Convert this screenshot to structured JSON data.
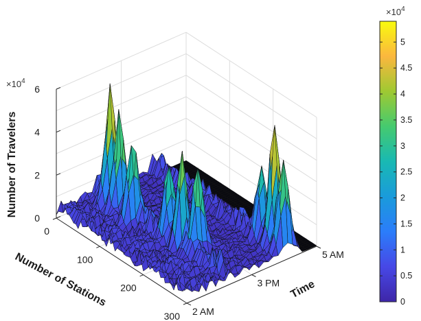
{
  "chart_data": {
    "type": "surface",
    "title": "",
    "xlabel": "Number of Stations",
    "ylabel": "Time",
    "zlabel": "Number of Travelers",
    "x_ticks": [
      "0",
      "100",
      "200",
      "300"
    ],
    "y_ticks": [
      "2 AM",
      "3 PM",
      "5 AM"
    ],
    "z_ticks": [
      "0",
      "2",
      "4",
      "6"
    ],
    "z_exponent": "10",
    "z_exponent_power": "4",
    "xlim": [
      0,
      300
    ],
    "ylim": [
      0,
      27
    ],
    "zlim": [
      0,
      60000
    ],
    "grid": true,
    "colormap": "parula",
    "colorbar": {
      "ticks": [
        "0",
        "0.5",
        "1",
        "1.5",
        "2",
        "2.5",
        "3",
        "3.5",
        "4",
        "4.5",
        "5"
      ],
      "exponent": "10",
      "exponent_power": "4",
      "range": [
        0,
        54000
      ],
      "placement": "right"
    },
    "peaks": [
      {
        "station": 35,
        "time_index": 8,
        "travelers": 48000
      },
      {
        "station": 55,
        "time_index": 8,
        "travelers": 38000
      },
      {
        "station": 95,
        "time_index": 7,
        "travelers": 34000
      },
      {
        "station": 160,
        "time_index": 9,
        "travelers": 32000
      },
      {
        "station": 190,
        "time_index": 9,
        "travelers": 40000
      },
      {
        "station": 215,
        "time_index": 10,
        "travelers": 36000
      },
      {
        "station": 240,
        "time_index": 21,
        "travelers": 30000
      },
      {
        "station": 270,
        "time_index": 21,
        "travelers": 54000
      },
      {
        "station": 290,
        "time_index": 21,
        "travelers": 42000
      }
    ]
  }
}
